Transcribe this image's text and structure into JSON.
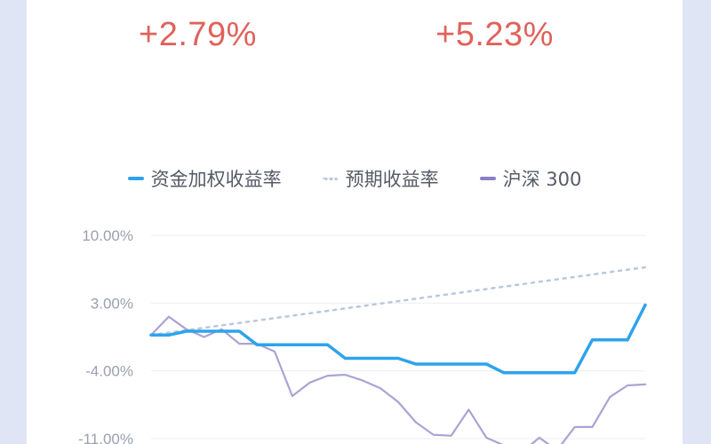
{
  "stats": {
    "left_value": "+2.79%",
    "right_value": "+5.23%"
  },
  "colors": {
    "accent": "#e0625c",
    "weighted": "#2ea3ec",
    "expected": "#b9c8dc",
    "index": "#a9a4d4",
    "index_legend": "#8b7fc7"
  },
  "chart_data": {
    "type": "line",
    "title": "",
    "xlabel": "",
    "ylabel": "",
    "y_ticks": [
      10,
      3,
      -4,
      -11
    ],
    "y_tick_labels": [
      "10.00%",
      "3.00%",
      "-4.00%",
      "-11.00%"
    ],
    "ylim": [
      -11,
      10
    ],
    "grid": true,
    "legend_position": "top-center",
    "x": [
      0,
      1,
      2,
      3,
      4,
      5,
      6,
      7,
      8,
      9,
      10,
      11,
      12,
      13,
      14,
      15,
      16,
      17,
      18,
      19,
      20,
      21,
      22,
      23,
      24,
      25,
      26,
      27,
      28
    ],
    "series": [
      {
        "name": "资金加权收益率",
        "style": "solid",
        "values": [
          -0.3,
          -0.3,
          0.1,
          0.1,
          0.1,
          0.1,
          -1.3,
          -1.3,
          -1.3,
          -1.3,
          -1.3,
          -2.7,
          -2.7,
          -2.7,
          -2.7,
          -3.3,
          -3.3,
          -3.3,
          -3.3,
          -3.3,
          -4.2,
          -4.2,
          -4.2,
          -4.2,
          -4.2,
          -0.8,
          -0.8,
          -0.8,
          2.8
        ]
      },
      {
        "name": "预期收益率",
        "style": "dotted",
        "values": [
          -0.3,
          -0.05,
          0.2,
          0.45,
          0.7,
          0.95,
          1.2,
          1.45,
          1.7,
          1.95,
          2.2,
          2.45,
          2.7,
          2.95,
          3.2,
          3.45,
          3.7,
          3.95,
          4.2,
          4.45,
          4.7,
          4.95,
          5.2,
          5.45,
          5.7,
          5.95,
          6.2,
          6.45,
          6.7
        ]
      },
      {
        "name": "沪深 300",
        "style": "solid",
        "values": [
          -0.3,
          1.6,
          0.3,
          -0.5,
          0.3,
          -1.2,
          -1.2,
          -2.0,
          -6.6,
          -5.2,
          -4.5,
          -4.4,
          -5.0,
          -5.8,
          -7.2,
          -9.3,
          -10.6,
          -10.7,
          -8.0,
          -10.9,
          -11.7,
          -12.4,
          -10.9,
          -12.2,
          -9.8,
          -9.8,
          -6.7,
          -5.5,
          -5.4
        ]
      }
    ]
  }
}
